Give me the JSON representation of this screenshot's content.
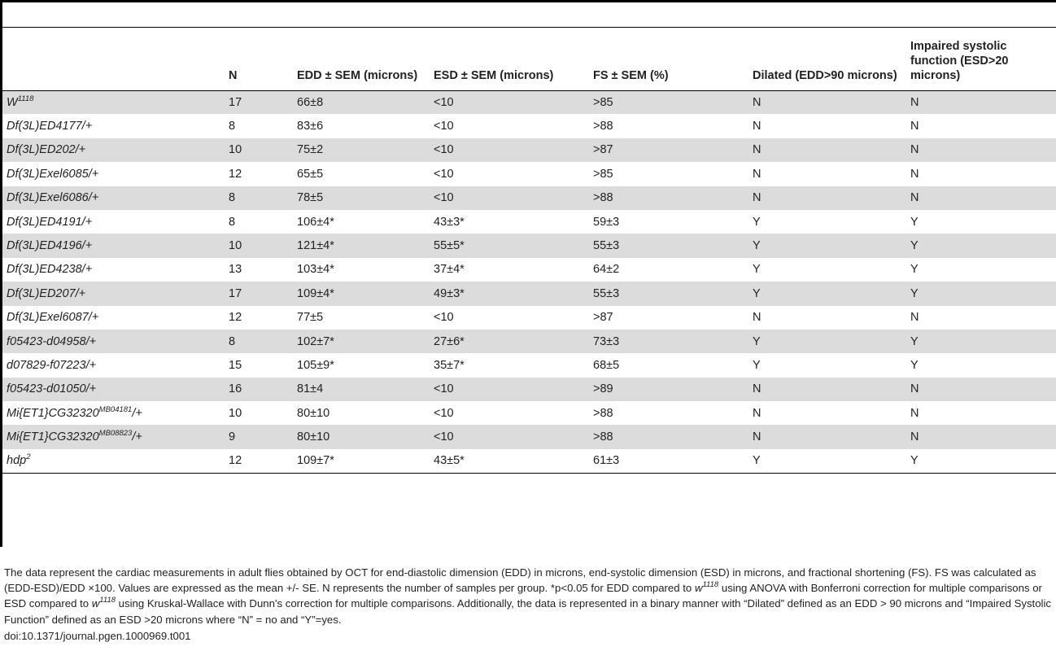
{
  "table": {
    "headers": [
      "",
      "N",
      "EDD ± SEM (microns)",
      "ESD ± SEM (microns)",
      "FS ± SEM (%)",
      "Dilated (EDD>90 microns)",
      "Impaired systolic function (ESD>20 microns)"
    ],
    "rows": [
      {
        "genotype": "W",
        "sup": "1118",
        "suffix": "",
        "n": "17",
        "edd": "66±8",
        "esd": "<10",
        "fs": ">85",
        "dilated": "N",
        "impaired": "N"
      },
      {
        "genotype": "Df(3L)ED4177/+",
        "sup": "",
        "suffix": "",
        "n": "8",
        "edd": "83±6",
        "esd": "<10",
        "fs": ">88",
        "dilated": "N",
        "impaired": "N"
      },
      {
        "genotype": "Df(3L)ED202/+",
        "sup": "",
        "suffix": "",
        "n": "10",
        "edd": "75±2",
        "esd": "<10",
        "fs": ">87",
        "dilated": "N",
        "impaired": "N"
      },
      {
        "genotype": "Df(3L)Exel6085/+",
        "sup": "",
        "suffix": "",
        "n": "12",
        "edd": "65±5",
        "esd": "<10",
        "fs": ">85",
        "dilated": "N",
        "impaired": "N"
      },
      {
        "genotype": "Df(3L)Exel6086/+",
        "sup": "",
        "suffix": "",
        "n": "8",
        "edd": "78±5",
        "esd": "<10",
        "fs": ">88",
        "dilated": "N",
        "impaired": "N"
      },
      {
        "genotype": "Df(3L)ED4191/+",
        "sup": "",
        "suffix": "",
        "n": "8",
        "edd": "106±4*",
        "esd": "43±3*",
        "fs": "59±3",
        "dilated": "Y",
        "impaired": "Y"
      },
      {
        "genotype": "Df(3L)ED4196/+",
        "sup": "",
        "suffix": "",
        "n": "10",
        "edd": "121±4*",
        "esd": "55±5*",
        "fs": "55±3",
        "dilated": "Y",
        "impaired": "Y"
      },
      {
        "genotype": "Df(3L)ED4238/+",
        "sup": "",
        "suffix": "",
        "n": "13",
        "edd": "103±4*",
        "esd": "37±4*",
        "fs": "64±2",
        "dilated": "Y",
        "impaired": "Y"
      },
      {
        "genotype": "Df(3L)ED207/+",
        "sup": "",
        "suffix": "",
        "n": "17",
        "edd": "109±4*",
        "esd": "49±3*",
        "fs": "55±3",
        "dilated": "Y",
        "impaired": "Y"
      },
      {
        "genotype": "Df(3L)Exel6087/+",
        "sup": "",
        "suffix": "",
        "n": "12",
        "edd": "77±5",
        "esd": "<10",
        "fs": ">87",
        "dilated": "N",
        "impaired": "N"
      },
      {
        "genotype": "f05423-d04958/+",
        "sup": "",
        "suffix": "",
        "n": "8",
        "edd": "102±7*",
        "esd": "27±6*",
        "fs": "73±3",
        "dilated": "Y",
        "impaired": "Y"
      },
      {
        "genotype": "d07829-f07223/+",
        "sup": "",
        "suffix": "",
        "n": "15",
        "edd": "105±9*",
        "esd": "35±7*",
        "fs": "68±5",
        "dilated": "Y",
        "impaired": "Y"
      },
      {
        "genotype": "f05423-d01050/+",
        "sup": "",
        "suffix": "",
        "n": "16",
        "edd": "81±4",
        "esd": "<10",
        "fs": ">89",
        "dilated": "N",
        "impaired": "N"
      },
      {
        "genotype": "Mi{ET1}CG32320",
        "sup": "MB04181",
        "suffix": "/+",
        "n": "10",
        "edd": "80±10",
        "esd": "<10",
        "fs": ">88",
        "dilated": "N",
        "impaired": "N"
      },
      {
        "genotype": "Mi{ET1}CG32320",
        "sup": "MB08823",
        "suffix": "/+",
        "n": "9",
        "edd": "80±10",
        "esd": "<10",
        "fs": ">88",
        "dilated": "N",
        "impaired": "N"
      },
      {
        "genotype": "hdp",
        "sup": "2",
        "suffix": "",
        "n": "12",
        "edd": "109±7*",
        "esd": "43±5*",
        "fs": "61±3",
        "dilated": "Y",
        "impaired": "Y"
      }
    ]
  },
  "footnote": {
    "part1": "The data represent the cardiac measurements in adult flies obtained by OCT for end-diastolic dimension (EDD) in microns, end-systolic dimension (ESD) in microns, and fractional shortening (FS). FS was calculated as (EDD-ESD)/EDD ×100. Values are expressed as the mean +/- SE. N represents the number of samples per group. *p<0.05 for EDD compared to ",
    "w1": "w",
    "w1_sup": "1118",
    "part2": " using ANOVA with Bonferroni correction for multiple comparisons or ESD compared to ",
    "w2": "w",
    "w2_sup": "1118",
    "part3": " using Kruskal-Wallace with Dunn's correction for multiple comparisons. Additionally, the data is represented in a binary manner with “Dilated” defined as an EDD > 90 microns and “Impaired Systolic Function” defined as an ESD >20 microns where “N” = no and “Y”=yes."
  },
  "doi": "doi:10.1371/journal.pgen.1000969.t001"
}
